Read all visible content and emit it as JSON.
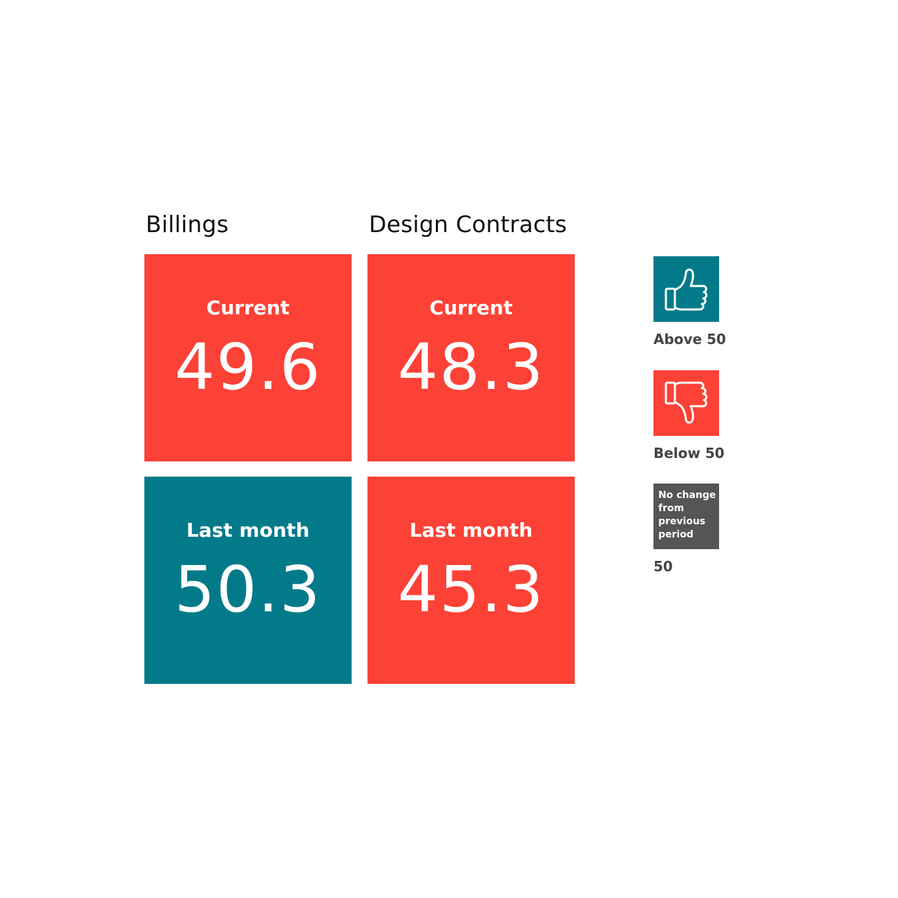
{
  "colors": {
    "above": "#037A8A",
    "below": "#FC4136",
    "no_change": "#555555"
  },
  "chart_data": {
    "type": "table",
    "columns": [
      {
        "title": "Billings",
        "tiles": [
          {
            "label": "Current",
            "value": "49.6",
            "status": "below"
          },
          {
            "label": "Last month",
            "value": "50.3",
            "status": "above"
          }
        ]
      },
      {
        "title": "Design Contracts",
        "tiles": [
          {
            "label": "Current",
            "value": "48.3",
            "status": "below"
          },
          {
            "label": "Last month",
            "value": "45.3",
            "status": "below"
          }
        ]
      }
    ]
  },
  "legend": {
    "above": {
      "icon": "thumbs-up-icon",
      "label": "Above 50"
    },
    "below": {
      "icon": "thumbs-down-icon",
      "label": "Below 50"
    },
    "no_change": {
      "box_text": "No change from previous period",
      "label": "50"
    }
  }
}
